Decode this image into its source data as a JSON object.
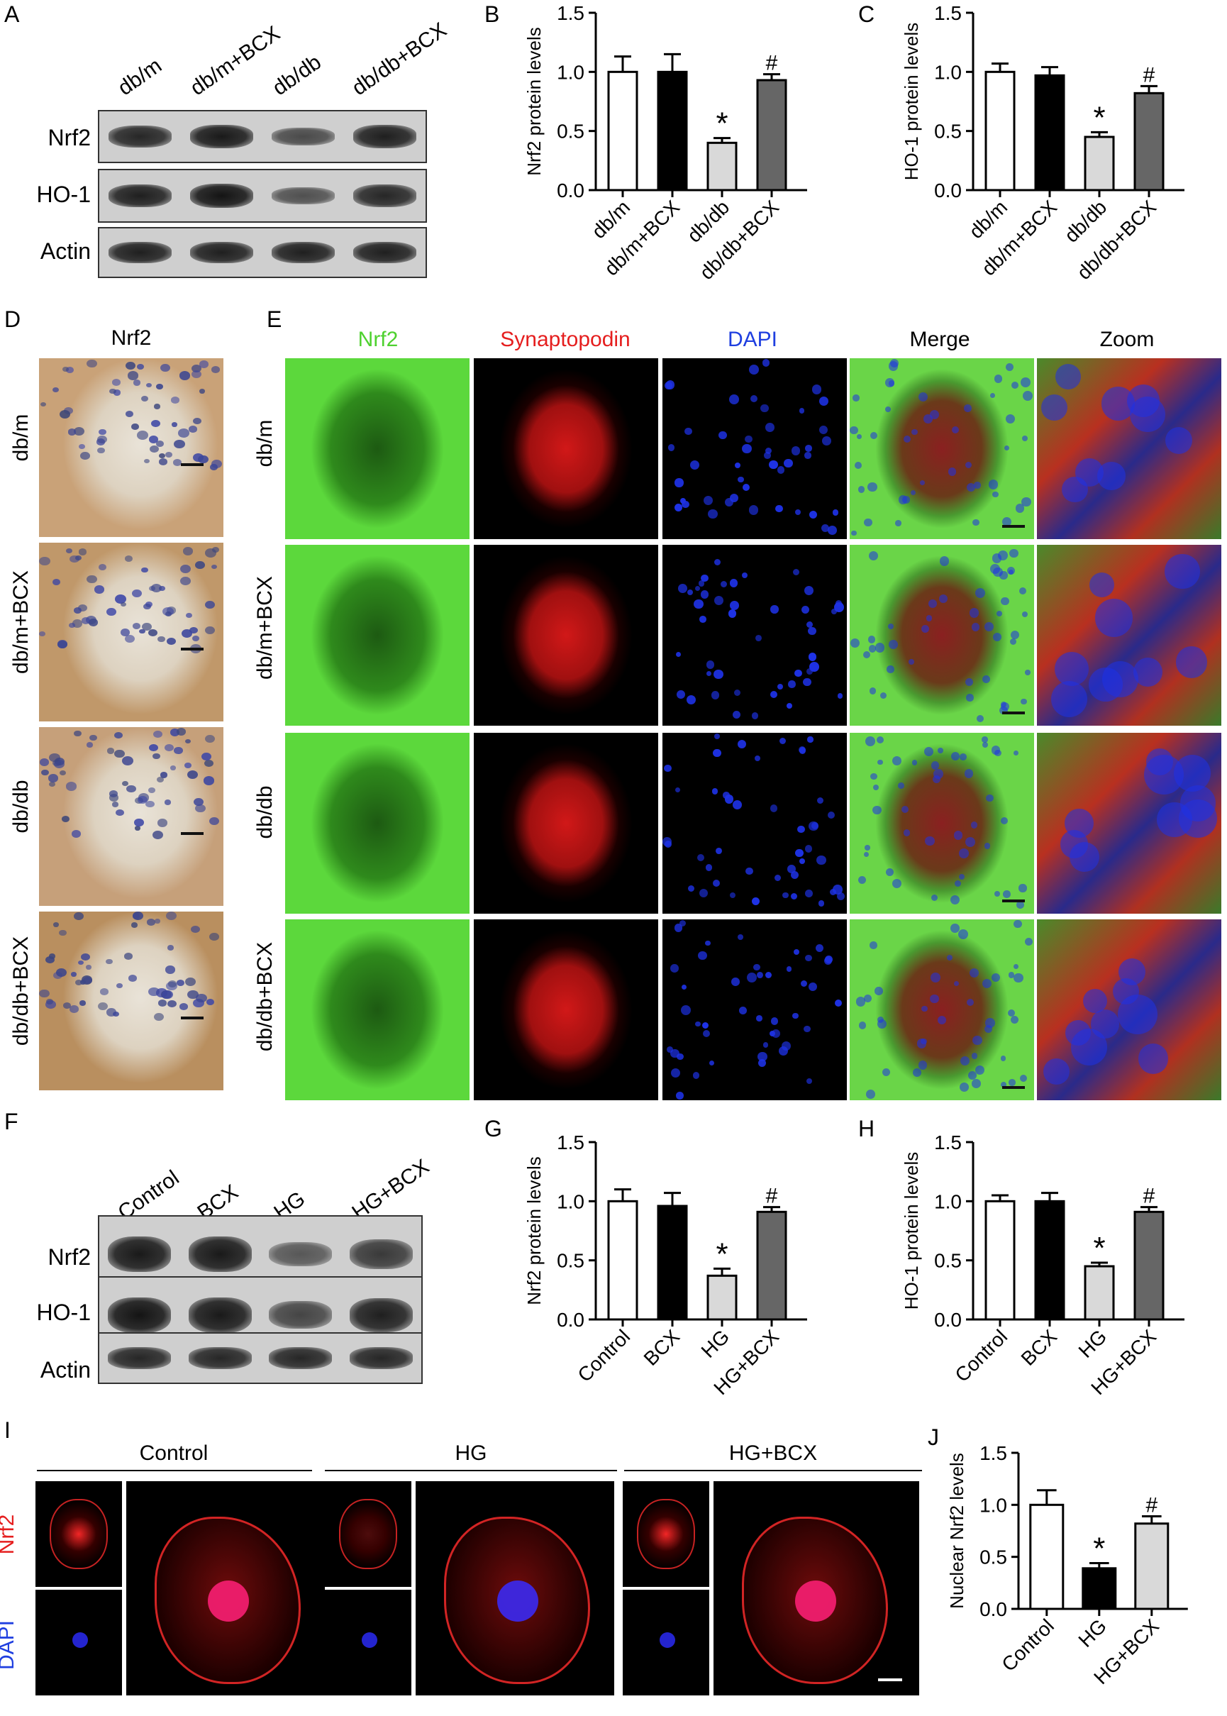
{
  "panel_letters": {
    "A": "A",
    "B": "B",
    "C": "C",
    "D": "D",
    "E": "E",
    "F": "F",
    "G": "G",
    "H": "H",
    "I": "I",
    "J": "J"
  },
  "panel_A": {
    "lanes": [
      "db/m",
      "db/m+BCX",
      "db/db",
      "db/db+BCX"
    ],
    "rows": [
      "Nrf2",
      "HO-1",
      "Actin"
    ],
    "band_intensity": [
      [
        0.85,
        0.95,
        0.55,
        0.9
      ],
      [
        0.9,
        1.0,
        0.5,
        0.85
      ],
      [
        0.9,
        0.9,
        0.9,
        0.9
      ]
    ]
  },
  "panel_D": {
    "title": "Nrf2",
    "rows": [
      "db/m",
      "db/m+BCX",
      "db/db",
      "db/db+BCX"
    ]
  },
  "panel_E": {
    "columns": [
      {
        "label": "Nrf2",
        "color": "#4ed12f"
      },
      {
        "label": "Synaptopodin",
        "color": "#e51e1e"
      },
      {
        "label": "DAPI",
        "color": "#1f3fe0"
      },
      {
        "label": "Merge",
        "color": "#000000"
      },
      {
        "label": "Zoom",
        "color": "#000000"
      }
    ],
    "rows": [
      "db/m",
      "db/m+BCX",
      "db/db",
      "db/db+BCX"
    ]
  },
  "panel_F": {
    "lanes": [
      "Control",
      "BCX",
      "HG",
      "HG+BCX"
    ],
    "rows": [
      "Nrf2",
      "HO-1",
      "Actin"
    ],
    "band_intensity": [
      [
        0.95,
        0.95,
        0.45,
        0.7
      ],
      [
        1.0,
        0.95,
        0.6,
        0.9
      ],
      [
        0.85,
        0.85,
        0.85,
        0.85
      ]
    ]
  },
  "panel_I": {
    "groups": [
      "Control",
      "HG",
      "HG+BCX"
    ],
    "channels": [
      {
        "label": "Nrf2",
        "color": "#e51e1e"
      },
      {
        "label": "DAPI",
        "color": "#1f3fe0"
      }
    ]
  },
  "chart_data": [
    {
      "panel": "B",
      "type": "bar",
      "categories": [
        "db/m",
        "db/m+BCX",
        "db/db",
        "db/db+BCX"
      ],
      "values": [
        1.0,
        1.0,
        0.4,
        0.93
      ],
      "errors": [
        0.13,
        0.15,
        0.04,
        0.05
      ],
      "fills": [
        "#ffffff",
        "#000000",
        "#d9d9d9",
        "#666666"
      ],
      "annotations": [
        "",
        "",
        "*",
        "#"
      ],
      "ylabel": "Nrf2 protein levels",
      "ylim": [
        0,
        1.5
      ],
      "yticks": [
        "0.0",
        "0.5",
        "1.0",
        "1.5"
      ]
    },
    {
      "panel": "C",
      "type": "bar",
      "categories": [
        "db/m",
        "db/m+BCX",
        "db/db",
        "db/db+BCX"
      ],
      "values": [
        1.0,
        0.97,
        0.45,
        0.82
      ],
      "errors": [
        0.07,
        0.07,
        0.04,
        0.06
      ],
      "fills": [
        "#ffffff",
        "#000000",
        "#d9d9d9",
        "#666666"
      ],
      "annotations": [
        "",
        "",
        "*",
        "#"
      ],
      "ylabel": "HO-1 protein levels",
      "ylim": [
        0,
        1.5
      ],
      "yticks": [
        "0.0",
        "0.5",
        "1.0",
        "1.5"
      ]
    },
    {
      "panel": "G",
      "type": "bar",
      "categories": [
        "Control",
        "BCX",
        "HG",
        "HG+BCX"
      ],
      "values": [
        1.0,
        0.96,
        0.37,
        0.91
      ],
      "errors": [
        0.1,
        0.11,
        0.06,
        0.04
      ],
      "fills": [
        "#ffffff",
        "#000000",
        "#d9d9d9",
        "#666666"
      ],
      "annotations": [
        "",
        "",
        "*",
        "#"
      ],
      "ylabel": "Nrf2 protein levels",
      "ylim": [
        0,
        1.5
      ],
      "yticks": [
        "0.0",
        "0.5",
        "1.0",
        "1.5"
      ]
    },
    {
      "panel": "H",
      "type": "bar",
      "categories": [
        "Control",
        "BCX",
        "HG",
        "HG+BCX"
      ],
      "values": [
        1.0,
        1.0,
        0.45,
        0.91
      ],
      "errors": [
        0.05,
        0.07,
        0.03,
        0.04
      ],
      "fills": [
        "#ffffff",
        "#000000",
        "#d9d9d9",
        "#666666"
      ],
      "annotations": [
        "",
        "",
        "*",
        "#"
      ],
      "ylabel": "HO-1 protein levels",
      "ylim": [
        0,
        1.5
      ],
      "yticks": [
        "0.0",
        "0.5",
        "1.0",
        "1.5"
      ]
    },
    {
      "panel": "J",
      "type": "bar",
      "categories": [
        "Control",
        "HG",
        "HG+BCX"
      ],
      "values": [
        1.0,
        0.39,
        0.82
      ],
      "errors": [
        0.14,
        0.05,
        0.07
      ],
      "fills": [
        "#ffffff",
        "#000000",
        "#d9d9d9"
      ],
      "annotations": [
        "",
        "*",
        "#"
      ],
      "ylabel": "Nuclear Nrf2 levels",
      "ylim": [
        0,
        1.5
      ],
      "yticks": [
        "0.0",
        "0.5",
        "1.0",
        "1.5"
      ]
    }
  ]
}
